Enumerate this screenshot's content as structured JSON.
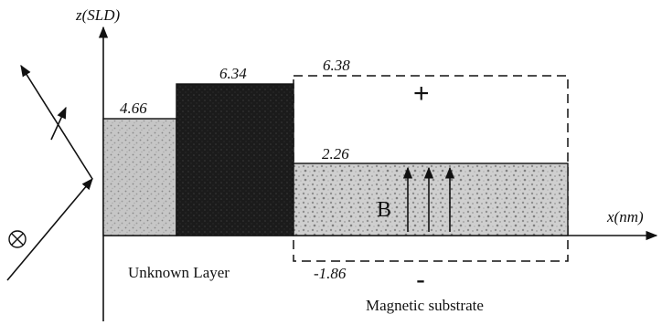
{
  "axes": {
    "y_label": "z(SLD)",
    "x_label": "x(nm)"
  },
  "layers": {
    "layer1_value": "4.66",
    "layer2_value": "6.34",
    "plus_state_value": "6.38",
    "substrate_value": "2.26",
    "minus_state_value": "-1.86"
  },
  "annotations": {
    "unknown_layer": "Unknown Layer",
    "magnetic_substrate": "Magnetic substrate",
    "field_label": "B",
    "plus_sign": "+",
    "minus_sign": "-"
  },
  "colors": {
    "layer1_fill": "#c4c4c4",
    "layer2_fill": "#1c1c1c",
    "substrate_fill": "#c9c9c9",
    "stroke": "#111111"
  }
}
